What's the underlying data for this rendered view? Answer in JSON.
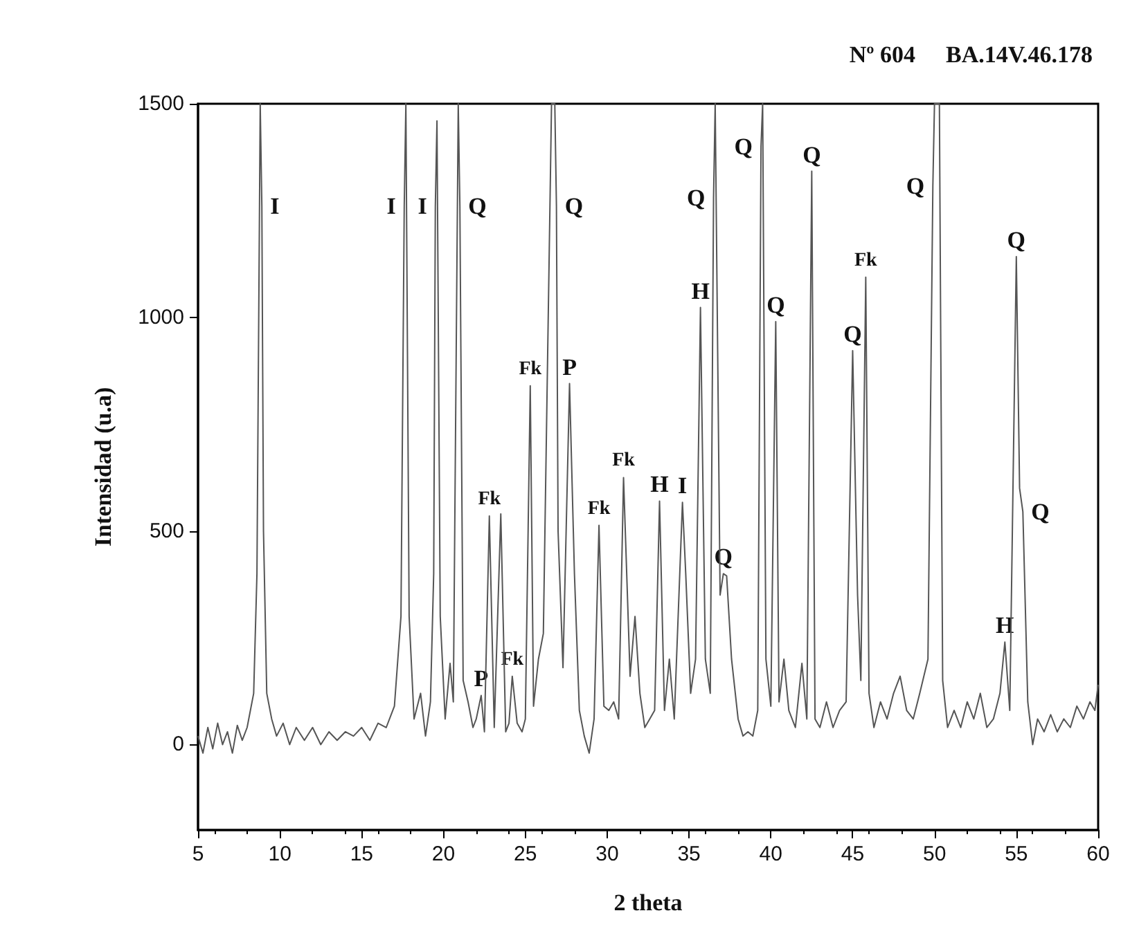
{
  "chart_data": {
    "type": "line",
    "title": "Nº 604",
    "subtitle": "BA.14V.46.178",
    "xlabel": "2 theta",
    "ylabel": "Intensidad (u.a)",
    "xlim": [
      5,
      60
    ],
    "xticks": [
      5,
      10,
      15,
      20,
      25,
      30,
      35,
      40,
      45,
      50,
      55,
      60
    ],
    "ylim": [
      -200,
      1500
    ],
    "yticks": [
      0,
      500,
      1000,
      1500
    ],
    "marker": "none",
    "series": [
      {
        "color": "#555555",
        "x": [
          5.0,
          5.3,
          5.6,
          5.9,
          6.2,
          6.5,
          6.8,
          7.1,
          7.4,
          7.7,
          8.0,
          8.4,
          8.6,
          8.8,
          8.9,
          9.0,
          9.2,
          9.5,
          9.8,
          10.2,
          10.6,
          11.0,
          11.5,
          12.0,
          12.5,
          13.0,
          13.5,
          14.0,
          14.5,
          15.0,
          15.5,
          16.0,
          16.5,
          17.0,
          17.4,
          17.6,
          17.7,
          17.9,
          18.2,
          18.6,
          18.9,
          19.2,
          19.4,
          19.5,
          19.6,
          19.8,
          20.1,
          20.4,
          20.6,
          20.9,
          21.0,
          21.2,
          21.5,
          21.8,
          22.0,
          22.3,
          22.5,
          22.8,
          23.1,
          23.5,
          23.8,
          24.0,
          24.2,
          24.5,
          24.8,
          25.0,
          25.3,
          25.5,
          25.8,
          26.1,
          26.6,
          26.8,
          26.9,
          27.0,
          27.3,
          27.7,
          28.0,
          28.3,
          28.6,
          28.9,
          29.2,
          29.5,
          29.8,
          30.1,
          30.4,
          30.7,
          31.0,
          31.4,
          31.7,
          32.0,
          32.3,
          32.6,
          32.9,
          33.2,
          33.5,
          33.8,
          34.1,
          34.6,
          34.8,
          35.1,
          35.4,
          35.7,
          36.0,
          36.3,
          36.5,
          36.6,
          36.9,
          37.1,
          37.3,
          37.6,
          38.0,
          38.3,
          38.6,
          38.9,
          39.2,
          39.4,
          39.5,
          39.7,
          40.0,
          40.3,
          40.5,
          40.8,
          41.1,
          41.5,
          41.9,
          42.2,
          42.5,
          42.7,
          43.0,
          43.4,
          43.8,
          44.2,
          44.6,
          45.0,
          45.3,
          45.5,
          45.8,
          46.0,
          46.3,
          46.7,
          47.1,
          47.5,
          47.9,
          48.3,
          48.7,
          49.1,
          49.6,
          49.9,
          50.0,
          50.3,
          50.5,
          50.8,
          51.2,
          51.6,
          52.0,
          52.4,
          52.8,
          53.2,
          53.6,
          54.0,
          54.3,
          54.6,
          55.0,
          55.2,
          55.4,
          55.7,
          56.0,
          56.3,
          56.7,
          57.1,
          57.5,
          57.9,
          58.3,
          58.7,
          59.1,
          59.5,
          59.8,
          60.0
        ],
        "values": [
          20,
          -20,
          40,
          -10,
          50,
          0,
          30,
          -20,
          45,
          10,
          40,
          120,
          400,
          1500,
          1260,
          500,
          120,
          60,
          20,
          50,
          0,
          40,
          10,
          40,
          0,
          30,
          10,
          30,
          20,
          40,
          10,
          50,
          40,
          90,
          300,
          1260,
          1500,
          300,
          60,
          120,
          20,
          100,
          400,
          1260,
          1460,
          300,
          60,
          190,
          100,
          1500,
          1260,
          150,
          100,
          40,
          60,
          115,
          30,
          535,
          40,
          540,
          30,
          50,
          160,
          50,
          30,
          60,
          840,
          90,
          200,
          260,
          1500,
          1500,
          1260,
          500,
          180,
          845,
          400,
          80,
          20,
          -20,
          60,
          513,
          90,
          80,
          100,
          60,
          625,
          160,
          300,
          120,
          40,
          60,
          80,
          570,
          80,
          200,
          60,
          567,
          400,
          120,
          200,
          1023,
          200,
          120,
          1280,
          1500,
          350,
          400,
          395,
          200,
          60,
          20,
          30,
          20,
          80,
          1400,
          1500,
          200,
          90,
          990,
          100,
          200,
          80,
          40,
          190,
          60,
          1342,
          60,
          40,
          100,
          40,
          80,
          100,
          922,
          350,
          150,
          1094,
          120,
          40,
          100,
          60,
          120,
          160,
          80,
          60,
          120,
          200,
          1307,
          1500,
          1500,
          150,
          40,
          80,
          40,
          100,
          60,
          120,
          40,
          60,
          120,
          240,
          80,
          1142,
          600,
          545,
          100,
          0,
          60,
          30,
          70,
          30,
          60,
          40,
          90,
          60,
          100,
          80,
          140
        ]
      }
    ],
    "annotations": [
      {
        "text": "I",
        "x": 8.9,
        "y": 1260
      },
      {
        "text": "I",
        "x": 17.6,
        "y": 1260
      },
      {
        "text": "I",
        "x": 19.5,
        "y": 1260
      },
      {
        "text": "Q",
        "x": 21.0,
        "y": 1260
      },
      {
        "text": "P",
        "x": 22.3,
        "y": 115
      },
      {
        "text": "Fk",
        "x": 22.8,
        "y": 535
      },
      {
        "text": "Fk",
        "x": 24.2,
        "y": 160
      },
      {
        "text": "Fk",
        "x": 25.3,
        "y": 840
      },
      {
        "text": "Q",
        "x": 26.9,
        "y": 1260
      },
      {
        "text": "P",
        "x": 27.7,
        "y": 845
      },
      {
        "text": "Fk",
        "x": 29.5,
        "y": 513
      },
      {
        "text": "Fk",
        "x": 31.0,
        "y": 625
      },
      {
        "text": "H",
        "x": 33.2,
        "y": 570
      },
      {
        "text": "I",
        "x": 34.6,
        "y": 567
      },
      {
        "text": "H",
        "x": 35.7,
        "y": 1023
      },
      {
        "text": "Q",
        "x": 36.5,
        "y": 1280
      },
      {
        "text": "Q",
        "x": 37.1,
        "y": 400
      },
      {
        "text": "Q",
        "x": 39.4,
        "y": 1400
      },
      {
        "text": "Q",
        "x": 40.3,
        "y": 990
      },
      {
        "text": "Q",
        "x": 42.5,
        "y": 1342
      },
      {
        "text": "Q",
        "x": 45.0,
        "y": 922
      },
      {
        "text": "Fk",
        "x": 45.8,
        "y": 1094
      },
      {
        "text": "Q",
        "x": 49.9,
        "y": 1307
      },
      {
        "text": "H",
        "x": 54.3,
        "y": 240
      },
      {
        "text": "Q",
        "x": 55.0,
        "y": 1142
      },
      {
        "text": "Q",
        "x": 55.4,
        "y": 545
      }
    ]
  }
}
